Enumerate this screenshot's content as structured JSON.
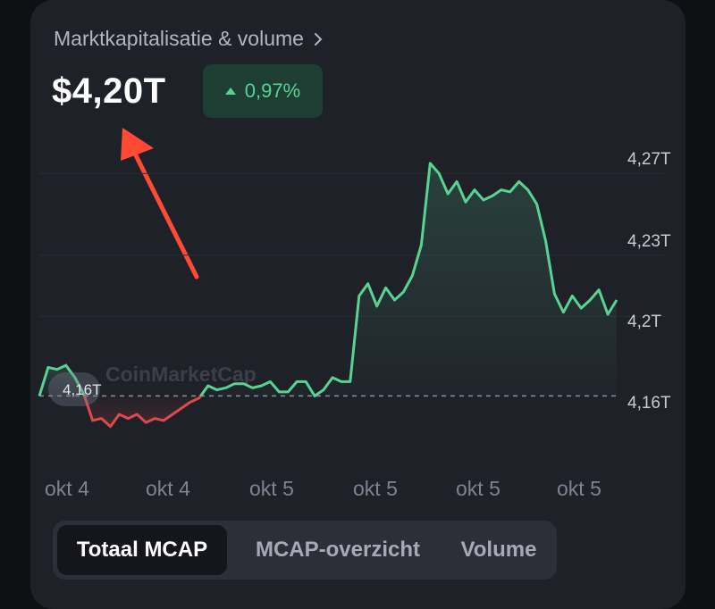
{
  "header": {
    "title": "Marktkapitalisatie & volume",
    "chevron_icon": "chevron-right-icon"
  },
  "price": {
    "value": "$4,20T"
  },
  "change": {
    "value": "0,97%",
    "direction_icon": "triangle-up-icon",
    "color": "#59d294"
  },
  "chart": {
    "current_label": "4,16T",
    "watermark": "CoinMarketCap",
    "y_labels": [
      "4,27T",
      "4,23T",
      "4,2T",
      "4,16T"
    ],
    "x_labels": [
      "okt 4",
      "okt 4",
      "okt 5",
      "okt 5",
      "okt 5",
      "okt 5"
    ],
    "colors": {
      "up": "#59d294",
      "down": "#e0484c",
      "annotation_arrow": "#ff4a33"
    }
  },
  "chart_data": {
    "type": "line",
    "y_unit": "T",
    "ylim": [
      4.145,
      4.285
    ],
    "reference_value": 4.161,
    "x": [
      0,
      1,
      2,
      3,
      4,
      5,
      6,
      7,
      8,
      9,
      10,
      11,
      12,
      13,
      14,
      15,
      16,
      17,
      18,
      19,
      20,
      21,
      22,
      23,
      24,
      25,
      26,
      27,
      28,
      29,
      30,
      31,
      32,
      33,
      34,
      35,
      36,
      37,
      38,
      39,
      40,
      41,
      42,
      43,
      44,
      45,
      46,
      47,
      48,
      49,
      50,
      51,
      52,
      53,
      54,
      55,
      56,
      57,
      58,
      59,
      60,
      61,
      62,
      63,
      64,
      65
    ],
    "values": [
      4.161,
      4.175,
      4.174,
      4.176,
      4.17,
      4.162,
      4.149,
      4.15,
      4.146,
      4.152,
      4.15,
      4.152,
      4.148,
      4.15,
      4.149,
      4.152,
      4.155,
      4.158,
      4.16,
      4.166,
      4.164,
      4.165,
      4.167,
      4.167,
      4.165,
      4.166,
      4.168,
      4.163,
      4.163,
      4.168,
      4.168,
      4.161,
      4.164,
      4.17,
      4.168,
      4.168,
      4.21,
      4.216,
      4.205,
      4.214,
      4.208,
      4.212,
      4.22,
      4.235,
      4.275,
      4.27,
      4.26,
      4.266,
      4.256,
      4.262,
      4.257,
      4.259,
      4.262,
      4.261,
      4.266,
      4.262,
      4.255,
      4.237,
      4.211,
      4.202,
      4.21,
      4.204,
      4.208,
      4.213,
      4.201,
      4.208
    ],
    "x_tick_labels": [
      "okt 4",
      "okt 4",
      "okt 5",
      "okt 5",
      "okt 5",
      "okt 5"
    ],
    "y_tick_labels": [
      "4,27T",
      "4,23T",
      "4,2T",
      "4,16T"
    ],
    "grid": true
  },
  "tabs": [
    {
      "label": "Totaal MCAP",
      "active": true
    },
    {
      "label": "MCAP-overzicht",
      "active": false
    },
    {
      "label": "Volume",
      "active": false
    }
  ]
}
